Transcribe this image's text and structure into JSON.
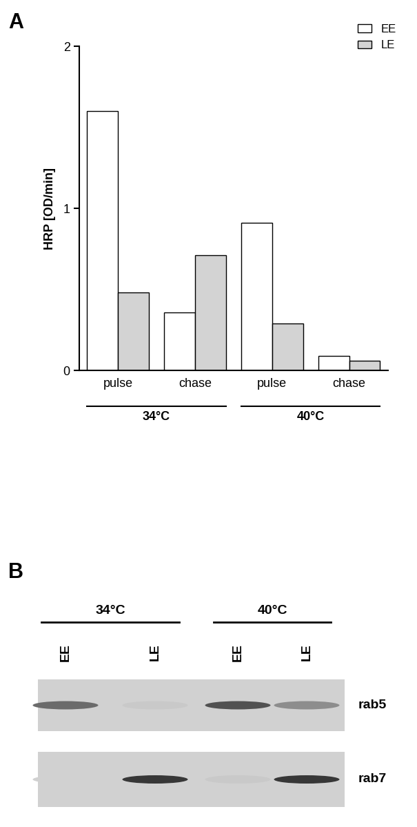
{
  "chart_data": {
    "type": "bar",
    "title": "A",
    "categories": [
      "pulse",
      "chase",
      "pulse",
      "chase"
    ],
    "groups": [
      {
        "name": "34°C",
        "categories": [
          0,
          1
        ]
      },
      {
        "name": "40°C",
        "categories": [
          2,
          3
        ]
      }
    ],
    "y_label": "HRP [OD/min]",
    "series": [
      {
        "name": "EE",
        "color": "#ffffff",
        "values": [
          1.6,
          0.36,
          0.91,
          0.09
        ]
      },
      {
        "name": "LE",
        "color": "#d3d3d3",
        "values": [
          0.48,
          0.71,
          0.29,
          0.06
        ]
      }
    ],
    "ylim": [
      0,
      2
    ],
    "yticks": [
      0,
      1,
      2
    ],
    "legend": "upper right",
    "grid": false
  },
  "blot": {
    "label": "B",
    "groups": [
      {
        "name": "34°C",
        "lanes": [
          0,
          1
        ]
      },
      {
        "name": "40°C",
        "lanes": [
          2,
          3
        ]
      }
    ],
    "lanes": [
      "EE",
      "LE",
      "EE",
      "LE"
    ],
    "rows": [
      {
        "name": "rab5",
        "intensity": [
          0.6,
          0.05,
          0.75,
          0.4
        ]
      },
      {
        "name": "rab7",
        "intensity": [
          0.0,
          0.9,
          0.05,
          0.9
        ]
      }
    ]
  }
}
